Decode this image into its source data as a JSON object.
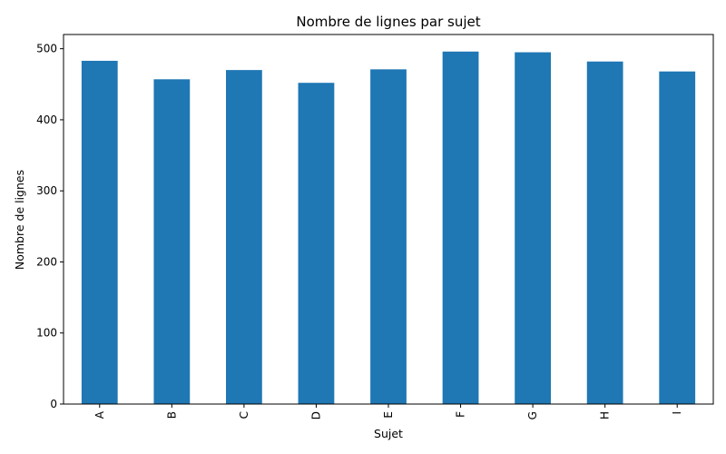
{
  "chart_data": {
    "type": "bar",
    "title": "Nombre de lignes par sujet",
    "xlabel": "Sujet",
    "ylabel": "Nombre de lignes",
    "categories": [
      "A",
      "B",
      "C",
      "D",
      "E",
      "F",
      "G",
      "H",
      "I"
    ],
    "values": [
      483,
      457,
      470,
      452,
      471,
      496,
      495,
      482,
      468
    ],
    "ylim": [
      0,
      520
    ],
    "yticks": [
      0,
      100,
      200,
      300,
      400,
      500
    ],
    "bar_color": "#1f77b4",
    "grid": false,
    "legend": "none"
  }
}
